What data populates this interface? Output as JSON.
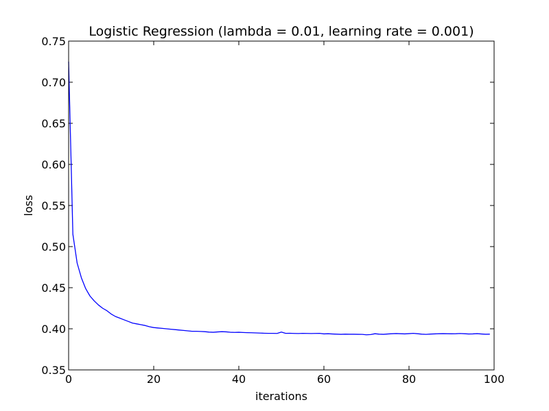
{
  "chart_data": {
    "type": "line",
    "title": "Logistic Regression (lambda = 0.01, learning rate = 0.001)",
    "xlabel": "iterations",
    "ylabel": "loss",
    "xlim": [
      0,
      100
    ],
    "ylim": [
      0.35,
      0.75
    ],
    "x_ticks": [
      0,
      20,
      40,
      60,
      80,
      100
    ],
    "y_ticks": [
      0.35,
      0.4,
      0.45,
      0.5,
      0.55,
      0.6,
      0.65,
      0.7,
      0.75
    ],
    "x_tick_labels": [
      "0",
      "20",
      "40",
      "60",
      "80",
      "100"
    ],
    "y_tick_labels": [
      "0.35",
      "0.40",
      "0.45",
      "0.50",
      "0.55",
      "0.60",
      "0.65",
      "0.70",
      "0.75"
    ],
    "grid": false,
    "legend": "none",
    "series": [
      {
        "color": "#0000ff",
        "x": [
          0,
          1,
          2,
          3,
          4,
          5,
          6,
          7,
          8,
          9,
          10,
          11,
          12,
          13,
          14,
          15,
          16,
          17,
          18,
          19,
          20,
          21,
          22,
          23,
          24,
          25,
          26,
          27,
          28,
          29,
          30,
          31,
          32,
          33,
          34,
          35,
          36,
          37,
          38,
          39,
          40,
          41,
          42,
          43,
          44,
          45,
          46,
          47,
          48,
          49,
          50,
          51,
          52,
          53,
          54,
          55,
          56,
          57,
          58,
          59,
          60,
          61,
          62,
          63,
          64,
          65,
          66,
          67,
          68,
          69,
          70,
          71,
          72,
          73,
          74,
          75,
          76,
          77,
          78,
          79,
          80,
          81,
          82,
          83,
          84,
          85,
          86,
          87,
          88,
          89,
          90,
          91,
          92,
          93,
          94,
          95,
          96,
          97,
          98,
          99
        ],
        "values": [
          0.725,
          0.515,
          0.48,
          0.462,
          0.449,
          0.44,
          0.434,
          0.429,
          0.425,
          0.422,
          0.418,
          0.415,
          0.413,
          0.411,
          0.409,
          0.407,
          0.406,
          0.405,
          0.404,
          0.4025,
          0.4015,
          0.401,
          0.4005,
          0.4,
          0.3995,
          0.399,
          0.3985,
          0.398,
          0.3975,
          0.397,
          0.397,
          0.3968,
          0.3965,
          0.396,
          0.3958,
          0.3962,
          0.3965,
          0.3963,
          0.3958,
          0.3956,
          0.3958,
          0.3955,
          0.3953,
          0.3952,
          0.395,
          0.3948,
          0.3946,
          0.3945,
          0.3945,
          0.3944,
          0.396,
          0.3945,
          0.3946,
          0.3944,
          0.3943,
          0.3945,
          0.3944,
          0.3943,
          0.3944,
          0.3945,
          0.3938,
          0.394,
          0.3937,
          0.3935,
          0.3933,
          0.3935,
          0.3934,
          0.3934,
          0.3933,
          0.3932,
          0.3927,
          0.393,
          0.394,
          0.3935,
          0.3933,
          0.3937,
          0.394,
          0.3942,
          0.394,
          0.3938,
          0.3941,
          0.3945,
          0.394,
          0.3935,
          0.3932,
          0.3936,
          0.3938,
          0.394,
          0.3941,
          0.394,
          0.3939,
          0.394,
          0.3943,
          0.394,
          0.3937,
          0.3938,
          0.3941,
          0.3937,
          0.3934,
          0.3935
        ]
      }
    ]
  }
}
